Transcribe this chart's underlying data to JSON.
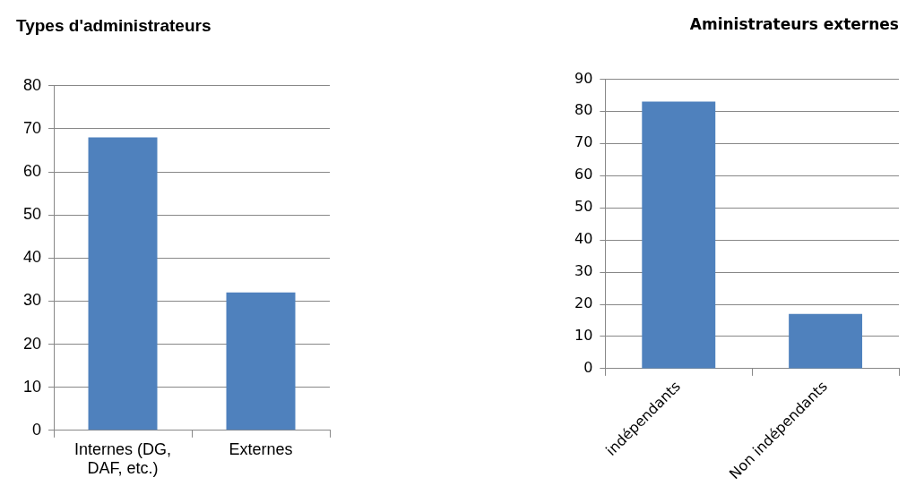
{
  "chart_data": [
    {
      "type": "bar",
      "title": "Types d'administrateurs",
      "categories": [
        "Internes (DG, DAF, etc.)",
        "Externes"
      ],
      "values": [
        68,
        32
      ],
      "color": "#4f81bd",
      "ylim": [
        0,
        80
      ],
      "yticks": [
        0,
        10,
        20,
        30,
        40,
        50,
        60,
        70,
        80
      ],
      "grid": "y",
      "legend": false
    },
    {
      "type": "bar",
      "title": "Aministrateurs externes",
      "categories": [
        "indépendants",
        "Non indépendants"
      ],
      "values": [
        83,
        17
      ],
      "color": "#4f81bd",
      "ylim": [
        0,
        90
      ],
      "yticks": [
        0,
        10,
        20,
        30,
        40,
        50,
        60,
        70,
        80,
        90
      ],
      "grid": "y",
      "legend": false
    }
  ]
}
